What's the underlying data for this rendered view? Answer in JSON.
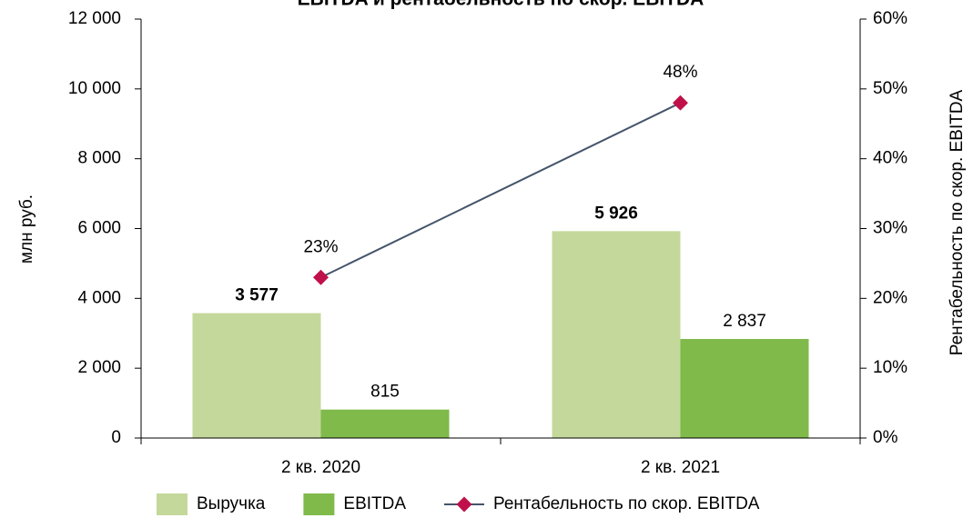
{
  "chart_data": {
    "type": "bar_line",
    "title": "EBITDA и рентабельность по скор. EBITDA",
    "categories": [
      "2 кв. 2020",
      "2 кв. 2021"
    ],
    "series": [
      {
        "name": "Выручка",
        "type": "bar",
        "color": "#c4d89b",
        "values": [
          3577,
          5926
        ],
        "value_labels": [
          "3 577",
          "5 926"
        ],
        "label_bold": true
      },
      {
        "name": "EBITDA",
        "type": "bar",
        "color": "#7fba4a",
        "values": [
          815,
          2837
        ],
        "value_labels": [
          "815",
          "2 837"
        ]
      },
      {
        "name": "Рентабельность по скор. EBITDA",
        "type": "line",
        "axis": "y2",
        "color": "#44546a",
        "marker_color": "#c0104a",
        "values": [
          23,
          48
        ],
        "value_labels": [
          "23%",
          "48%"
        ]
      }
    ],
    "y_label": "млн руб.",
    "y2_label": "Рентабельность по скор. EBITDA",
    "ylim": [
      0,
      12000
    ],
    "yticks": [
      0,
      {
        "value": 2000,
        "label": "2 000"
      },
      {
        "value": 4000,
        "label": "4 000"
      },
      {
        "value": 6000,
        "label": "6 000"
      },
      {
        "value": 8000,
        "label": "8 000"
      },
      {
        "value": 10000,
        "label": "10 000"
      },
      {
        "value": 12000,
        "label": "12 000"
      }
    ],
    "y2lim": [
      0,
      60
    ],
    "y2ticks": [
      {
        "value": 0,
        "label": "0%"
      },
      {
        "value": 10,
        "label": "10%"
      },
      {
        "value": 20,
        "label": "20%"
      },
      {
        "value": 30,
        "label": "30%"
      },
      {
        "value": 40,
        "label": "40%"
      },
      {
        "value": 50,
        "label": "50%"
      },
      {
        "value": 60,
        "label": "60%"
      }
    ],
    "legend": "bottom"
  }
}
